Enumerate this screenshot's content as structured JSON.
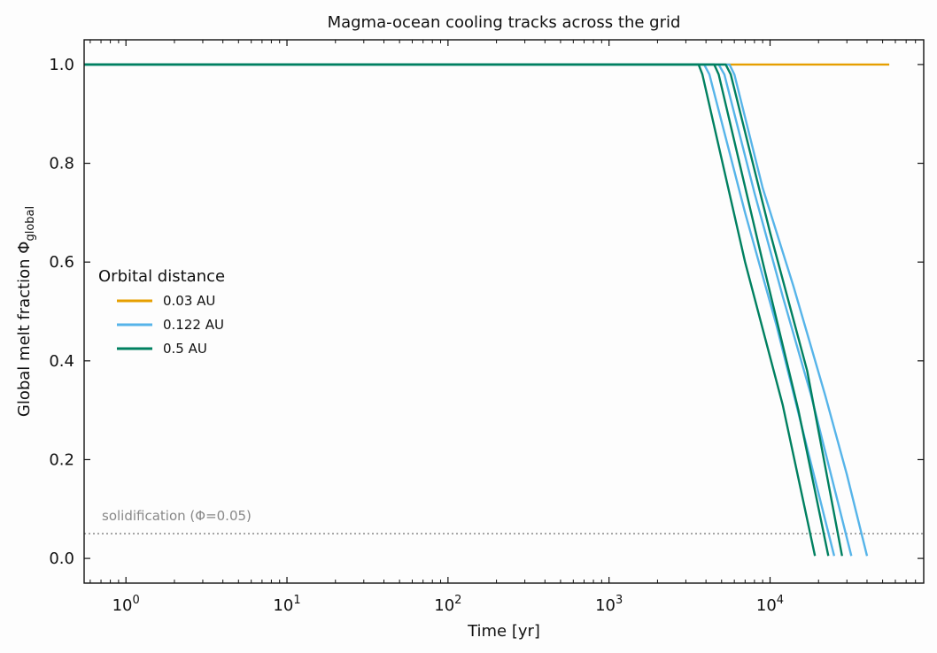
{
  "chart_data": {
    "type": "line",
    "title": "Magma-ocean cooling tracks across the grid",
    "xlabel": "Time [yr]",
    "ylabel_main": "Global melt fraction Φ",
    "ylabel_sub": "global",
    "xscale": "log",
    "xlim": [
      0.55,
      90000
    ],
    "ylim": [
      -0.05,
      1.05
    ],
    "x_ticks": [
      {
        "base": "10",
        "exp": "0",
        "value": 1
      },
      {
        "base": "10",
        "exp": "1",
        "value": 10
      },
      {
        "base": "10",
        "exp": "2",
        "value": 100
      },
      {
        "base": "10",
        "exp": "3",
        "value": 1000
      },
      {
        "base": "10",
        "exp": "4",
        "value": 10000
      }
    ],
    "y_ticks": [
      {
        "label": "0.0",
        "value": 0.0
      },
      {
        "label": "0.2",
        "value": 0.2
      },
      {
        "label": "0.4",
        "value": 0.4
      },
      {
        "label": "0.6",
        "value": 0.6
      },
      {
        "label": "0.8",
        "value": 0.8
      },
      {
        "label": "1.0",
        "value": 1.0
      }
    ],
    "grid": false,
    "legend": {
      "title": "Orbital distance",
      "placement": "center-left",
      "entries": [
        {
          "label": "0.03 AU",
          "color": "#E69F00"
        },
        {
          "label": "0.122 AU",
          "color": "#56B4E9"
        },
        {
          "label": "0.5 AU",
          "color": "#008060"
        }
      ]
    },
    "reference_line": {
      "y": 0.05,
      "label": "solidification (Φ=0.05)",
      "color": "#888888"
    },
    "series": [
      {
        "group": "0.03 AU",
        "color": "#E69F00",
        "x": [
          0.55,
          55000
        ],
        "y": [
          1.0,
          1.0
        ]
      },
      {
        "group": "0.122 AU",
        "color": "#56B4E9",
        "x": [
          0.55,
          5600,
          6000,
          9000,
          14000,
          22000,
          30000,
          40000
        ],
        "y": [
          1.0,
          1.0,
          0.98,
          0.75,
          0.55,
          0.33,
          0.17,
          0.005
        ]
      },
      {
        "group": "0.122 AU",
        "color": "#56B4E9",
        "x": [
          0.55,
          4800,
          5200,
          8000,
          12000,
          18000,
          32000
        ],
        "y": [
          1.0,
          1.0,
          0.98,
          0.74,
          0.53,
          0.33,
          0.005
        ]
      },
      {
        "group": "0.122 AU",
        "color": "#56B4E9",
        "x": [
          0.55,
          3900,
          4200,
          7000,
          11000,
          25000
        ],
        "y": [
          1.0,
          1.0,
          0.98,
          0.7,
          0.47,
          0.005
        ]
      },
      {
        "group": "0.5 AU",
        "color": "#008060",
        "x": [
          0.55,
          5300,
          5700,
          10000,
          17000,
          28000
        ],
        "y": [
          1.0,
          1.0,
          0.98,
          0.66,
          0.38,
          0.005
        ]
      },
      {
        "group": "0.5 AU",
        "color": "#008060",
        "x": [
          0.55,
          4500,
          4800,
          9000,
          15000,
          23000
        ],
        "y": [
          1.0,
          1.0,
          0.98,
          0.6,
          0.3,
          0.005
        ]
      },
      {
        "group": "0.5 AU",
        "color": "#008060",
        "x": [
          0.55,
          3600,
          3800,
          7000,
          12000,
          19000
        ],
        "y": [
          1.0,
          1.0,
          0.98,
          0.6,
          0.31,
          0.005
        ]
      }
    ]
  }
}
